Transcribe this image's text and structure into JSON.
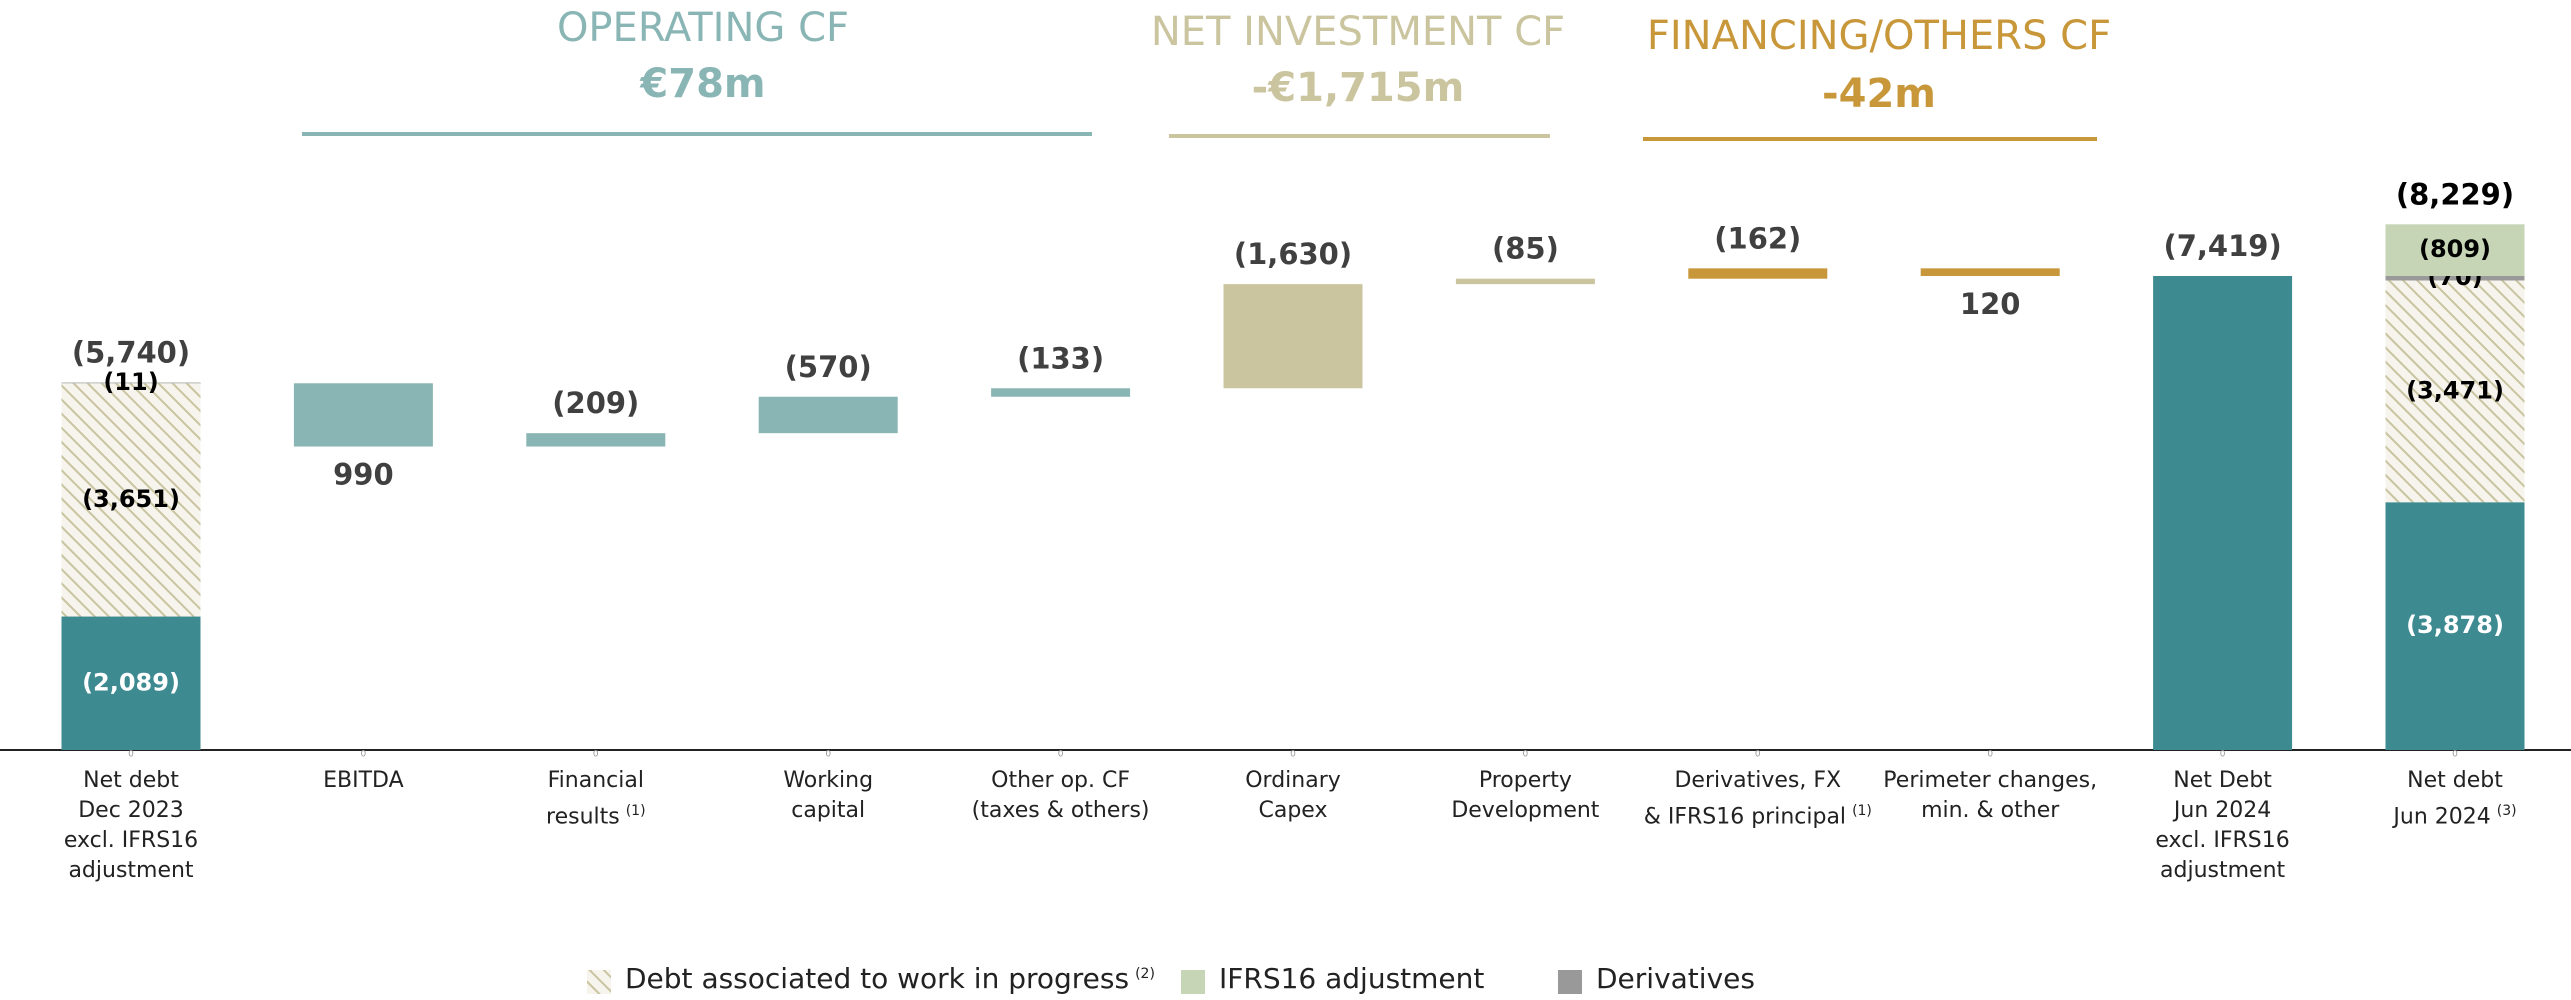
{
  "chart_data": {
    "type": "waterfall",
    "headers": [
      {
        "title": "OPERATING CF",
        "subtitle": "€78m",
        "color": "#8ab5b5"
      },
      {
        "title": "NET INVESTMENT CF",
        "subtitle": "-€1,715m",
        "color": "#cbc59f"
      },
      {
        "title": "FINANCING/OTHERS CF",
        "subtitle": "-42m",
        "color": "#c8973a"
      }
    ],
    "categories": [
      "Net debt\nDec 2023\nexcl. IFRS16\nadjustment",
      "EBITDA",
      "Financial\nresults",
      "Working\ncapital",
      "Other op. CF\n(taxes & others)",
      "Ordinary\nCapex",
      "Property\nDevelopment",
      "Derivatives, FX\n& IFRS16 principal",
      "Perimeter changes,\nmin. & other",
      "Net Debt\nJun 2024\nexcl. IFRS16\nadjustment",
      "Net debt\nJun 2024"
    ],
    "category_notes": [
      null,
      null,
      "(1)",
      null,
      null,
      null,
      null,
      "(1)",
      null,
      null,
      "(3)"
    ],
    "measure": [
      "total",
      "relative",
      "relative",
      "relative",
      "relative",
      "relative",
      "relative",
      "relative",
      "relative",
      "total",
      "total"
    ],
    "values": [
      -5740,
      990,
      -209,
      -570,
      -133,
      -1630,
      -85,
      -162,
      120,
      -7419,
      -8229
    ],
    "value_labels": [
      "(5,740)",
      "990",
      "(209)",
      "(570)",
      "(133)",
      "(1,630)",
      "(85)",
      "(162)",
      "120",
      "(7,419)",
      "(8,229)"
    ],
    "colors": [
      "#3d8a91",
      "#8ab5b5",
      "#8ab5b5",
      "#8ab5b5",
      "#8ab5b5",
      "#cbc59f",
      "#cbc59f",
      "#c8973a",
      "#c8973a",
      "#3d8a91",
      "#3d8a91"
    ],
    "core_values": [
      -2089,
      null,
      null,
      null,
      null,
      null,
      null,
      null,
      null,
      null,
      -3878
    ],
    "core_value_labels": [
      "(2,089)",
      null,
      null,
      null,
      null,
      null,
      null,
      null,
      null,
      null,
      "(3,878)"
    ],
    "series": [
      {
        "name": "Debt associated to work in progress",
        "note": "(2)",
        "color": "#c9c4a0",
        "pattern": "hatch",
        "values": [
          -3651,
          null,
          null,
          null,
          null,
          null,
          null,
          null,
          null,
          null,
          -3471
        ],
        "value_labels": [
          "(3,651)",
          null,
          null,
          null,
          null,
          null,
          null,
          null,
          null,
          null,
          "(3,471)"
        ]
      },
      {
        "name": "IFRS16 adjustment",
        "color": "#c5d5b5",
        "values": [
          null,
          null,
          null,
          null,
          null,
          null,
          null,
          null,
          null,
          null,
          -809
        ],
        "value_labels": [
          null,
          null,
          null,
          null,
          null,
          null,
          null,
          null,
          null,
          null,
          "(809)"
        ]
      },
      {
        "name": "Derivatives",
        "color": "#999999",
        "values": [
          -11,
          null,
          null,
          null,
          null,
          null,
          null,
          null,
          null,
          null,
          -70
        ],
        "value_labels": [
          "(11)",
          null,
          null,
          null,
          null,
          null,
          null,
          null,
          null,
          null,
          "(70)"
        ]
      }
    ],
    "ylim": [
      0,
      -9000
    ],
    "yticks": [
      0
    ]
  }
}
